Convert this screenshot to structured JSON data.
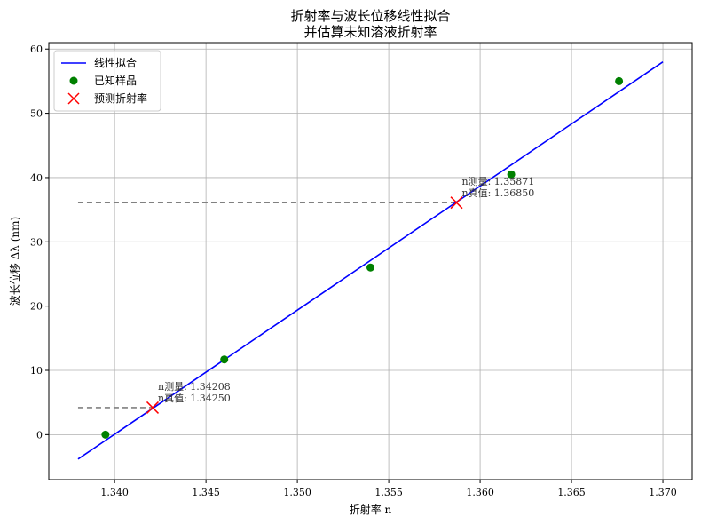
{
  "chart_data": {
    "type": "scatter",
    "title": "折射率与波长位移线性拟合\n并估算未知溶液折射率",
    "xlabel": "折射率 n",
    "ylabel": "波长位移 Δλ (nm)",
    "xlim": [
      1.3364,
      1.3716
    ],
    "ylim": [
      -7,
      61
    ],
    "xticks": [
      1.34,
      1.345,
      1.35,
      1.355,
      1.36,
      1.365,
      1.37
    ],
    "xtick_labels": [
      "1.340",
      "1.345",
      "1.350",
      "1.355",
      "1.360",
      "1.365",
      "1.370"
    ],
    "yticks": [
      0,
      10,
      20,
      30,
      40,
      50,
      60
    ],
    "ytick_labels": [
      "0",
      "10",
      "20",
      "30",
      "40",
      "50",
      "60"
    ],
    "grid": true,
    "legend_position": "top-left",
    "fit_line": {
      "name": "线性拟合",
      "color": "#0000ff",
      "x": [
        1.338,
        1.37
      ],
      "y": [
        -3.8,
        58.0
      ]
    },
    "known_samples": {
      "name": "已知样品",
      "color": "#008000",
      "x": [
        1.3395,
        1.346,
        1.354,
        1.3617,
        1.3676
      ],
      "y": [
        0.0,
        11.7,
        26.0,
        40.5,
        55.0
      ]
    },
    "predictions": {
      "name": "预测折射率",
      "color": "#ff0000",
      "points": [
        {
          "x": 1.34208,
          "y": 4.2,
          "label_measured": "n测量: 1.34208",
          "label_true": "n真值: 1.34250",
          "guide_x_start": 1.338
        },
        {
          "x": 1.35871,
          "y": 36.1,
          "label_measured": "n测量: 1.35871",
          "label_true": "n真值: 1.36850",
          "guide_x_start": 1.338
        }
      ]
    },
    "guide_color": "#808080"
  }
}
